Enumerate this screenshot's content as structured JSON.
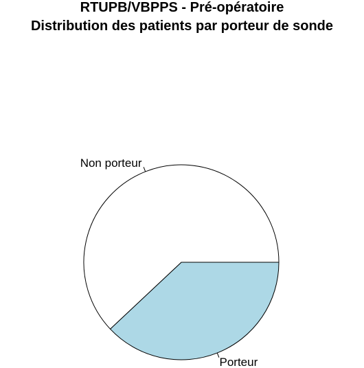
{
  "chart_data": {
    "type": "pie",
    "title": "RTUPB/VBPPS - Pré-opératoire",
    "subtitle": "Distribution des patients par porteur de sonde",
    "categories": [
      "Porteur",
      "Non porteur"
    ],
    "values": [
      38,
      62
    ],
    "colors": [
      "#ADD8E6",
      "#FFFFFF"
    ],
    "start_angle_deg": 0,
    "direction": "clockwise",
    "border_color": "#000000"
  }
}
